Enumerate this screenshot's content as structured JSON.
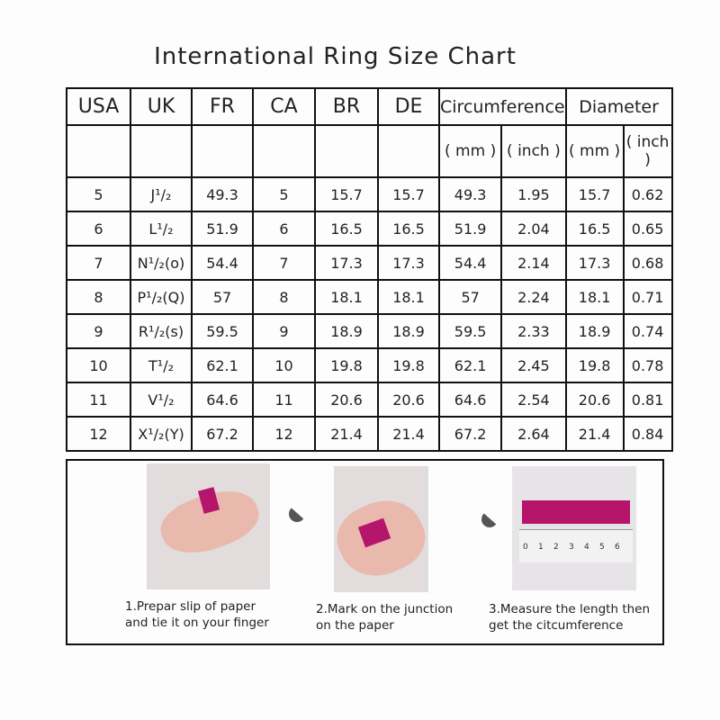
{
  "title": "International Ring Size Chart",
  "chart_data": {
    "type": "table",
    "title": "International Ring Size Chart",
    "headers": [
      "USA",
      "UK",
      "FR",
      "CA",
      "BR",
      "DE",
      "Circumference",
      "Diameter"
    ],
    "subheaders": [
      "",
      "",
      "",
      "",
      "",
      "",
      "( mm )",
      "( inch )",
      "( mm )",
      "( inch )"
    ],
    "rows": [
      [
        "5",
        "J¹/₂",
        "49.3",
        "5",
        "15.7",
        "15.7",
        "49.3",
        "1.95",
        "15.7",
        "0.62"
      ],
      [
        "6",
        "L¹/₂",
        "51.9",
        "6",
        "16.5",
        "16.5",
        "51.9",
        "2.04",
        "16.5",
        "0.65"
      ],
      [
        "7",
        "N¹/₂(o)",
        "54.4",
        "7",
        "17.3",
        "17.3",
        "54.4",
        "2.14",
        "17.3",
        "0.68"
      ],
      [
        "8",
        "P¹/₂(Q)",
        "57",
        "8",
        "18.1",
        "18.1",
        "57",
        "2.24",
        "18.1",
        "0.71"
      ],
      [
        "9",
        "R¹/₂(s)",
        "59.5",
        "9",
        "18.9",
        "18.9",
        "59.5",
        "2.33",
        "18.9",
        "0.74"
      ],
      [
        "10",
        "T¹/₂",
        "62.1",
        "10",
        "19.8",
        "19.8",
        "62.1",
        "2.45",
        "19.8",
        "0.78"
      ],
      [
        "11",
        "V¹/₂",
        "64.6",
        "11",
        "20.6",
        "20.6",
        "64.6",
        "2.54",
        "20.6",
        "0.81"
      ],
      [
        "12",
        "X¹/₂(Y)",
        "67.2",
        "12",
        "21.4",
        "21.4",
        "67.2",
        "2.64",
        "21.4",
        "0.84"
      ]
    ]
  },
  "steps": [
    {
      "line1": "1.Prepar slip of paper",
      "line2": "and tie it on your finger"
    },
    {
      "line1": "2.Mark on the junction",
      "line2": "on the paper"
    },
    {
      "line1": "3.Measure the length then",
      "line2": "get the citcumference"
    }
  ],
  "ruler_labels": [
    "0",
    "1",
    "2",
    "3",
    "4",
    "5",
    "6"
  ],
  "colors": {
    "strip": "#b5156a",
    "border": "#111111"
  }
}
